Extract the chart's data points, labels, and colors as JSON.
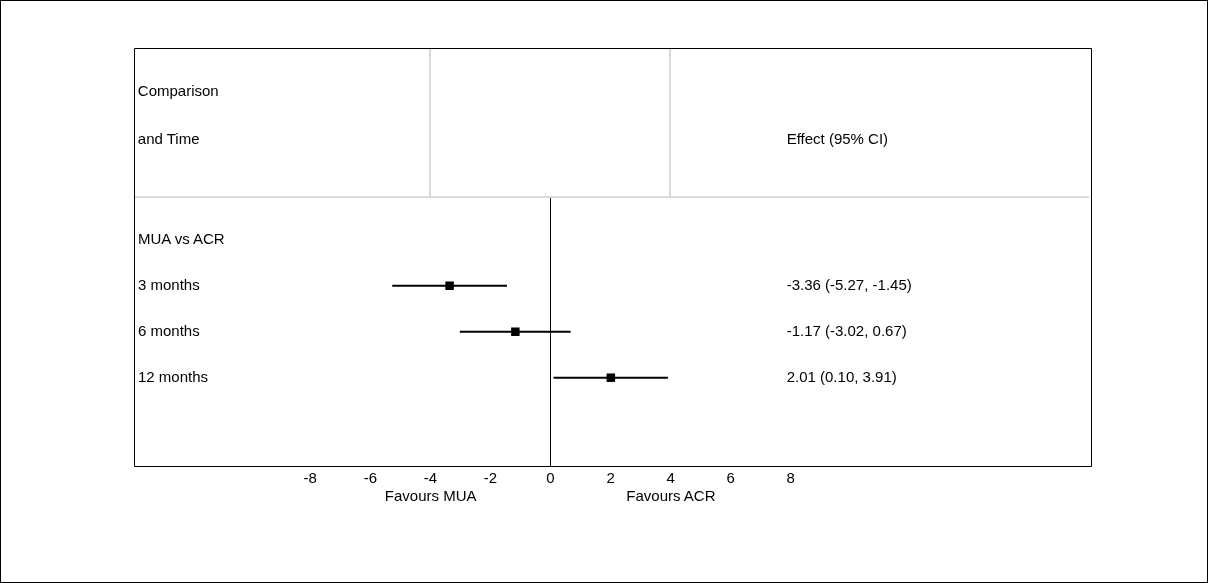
{
  "chart_data": {
    "type": "scatter",
    "orientation": "horizontal",
    "marker": "square",
    "categories": [
      "MUA vs ACR",
      "3 months",
      "6 months",
      "12 months"
    ],
    "values": [
      null,
      -3.36,
      -1.17,
      2.01
    ],
    "errors": [
      null,
      [
        -5.27,
        -1.45
      ],
      [
        -3.02,
        0.67
      ],
      [
        0.1,
        3.91
      ]
    ],
    "color": "#000000",
    "xlim": [
      -13.87,
      18
    ],
    "xticks": [
      -8,
      -6,
      -4,
      -2,
      0,
      2,
      4,
      6,
      8
    ],
    "ref_lines": [
      {
        "axis": "x",
        "value": 0,
        "color": "#000000"
      }
    ],
    "annotations": [
      "Comparison",
      "and Time",
      "Effect (95% CI)",
      "Favours MUA",
      "Favours ACR",
      "-3.36 (-5.27, -1.45)",
      "-1.17 (-3.02, 0.67)",
      "2.01 (0.10, 3.91)"
    ]
  }
}
